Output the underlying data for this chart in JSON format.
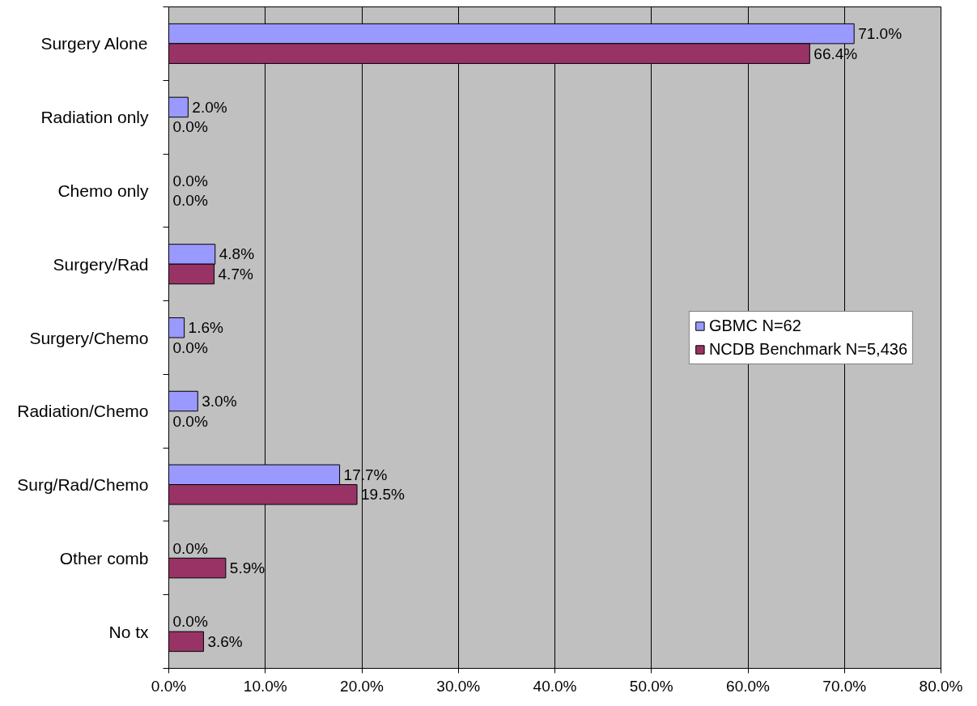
{
  "chart_data": {
    "type": "bar",
    "orientation": "horizontal",
    "categories": [
      "Surgery Alone",
      "Radiation only",
      "Chemo only",
      "Surgery/Rad",
      "Surgery/Chemo",
      "Radiation/Chemo",
      "Surg/Rad/Chemo",
      "Other comb",
      "No tx"
    ],
    "series": [
      {
        "name": "GBMC N=62",
        "color": "#9999ff",
        "values": [
          71.0,
          2.0,
          0.0,
          4.8,
          1.6,
          3.0,
          17.7,
          0.0,
          0.0
        ],
        "value_labels": [
          "71.0%",
          "2.0%",
          "0.0%",
          "4.8%",
          "1.6%",
          "3.0%",
          "17.7%",
          "0.0%",
          "0.0%"
        ]
      },
      {
        "name": "NCDB Benchmark N=5,436",
        "color": "#993366",
        "values": [
          66.4,
          0.0,
          0.0,
          4.7,
          0.0,
          0.0,
          19.5,
          5.9,
          3.6
        ],
        "value_labels": [
          "66.4%",
          "0.0%",
          "0.0%",
          "4.7%",
          "0.0%",
          "0.0%",
          "19.5%",
          "5.9%",
          "3.6%"
        ]
      }
    ],
    "xlim": [
      0,
      80
    ],
    "xticks": [
      {
        "value": 0,
        "label": "0.0%"
      },
      {
        "value": 10,
        "label": "10.0%"
      },
      {
        "value": 20,
        "label": "20.0%"
      },
      {
        "value": 30,
        "label": "30.0%"
      },
      {
        "value": 40,
        "label": "40.0%"
      },
      {
        "value": 50,
        "label": "50.0%"
      },
      {
        "value": 60,
        "label": "60.0%"
      },
      {
        "value": 70,
        "label": "70.0%"
      },
      {
        "value": 80,
        "label": "80.0%"
      }
    ],
    "grid": "x",
    "legend": "right"
  }
}
